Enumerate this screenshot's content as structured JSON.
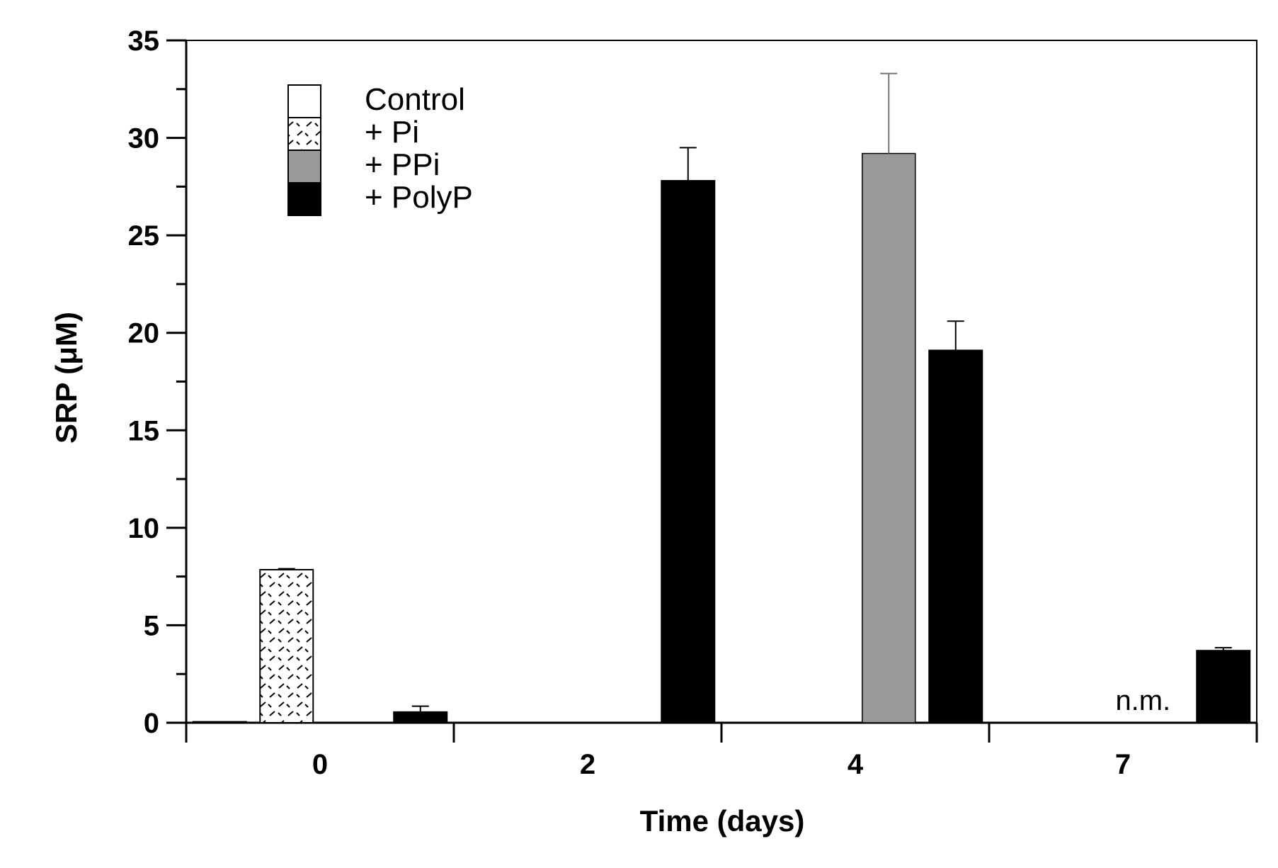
{
  "chart_data": {
    "type": "bar",
    "title": "",
    "xlabel": "Time (days)",
    "ylabel": "SRP (μM)",
    "ylim": [
      0,
      35
    ],
    "yticks": [
      0,
      5,
      10,
      15,
      20,
      25,
      30,
      35
    ],
    "ytick_labels": [
      "0",
      "5",
      "10",
      "15",
      "20",
      "25",
      "30",
      "35"
    ],
    "categories": [
      "0",
      "2",
      "4",
      "7"
    ],
    "grid": false,
    "legend_position": "top-left",
    "series": [
      {
        "name": "Control",
        "fill": "#ffffff",
        "pattern": "none",
        "values": [
          0.05,
          null,
          null,
          null
        ],
        "errors": [
          0,
          null,
          null,
          null
        ]
      },
      {
        "name": "+ Pi",
        "fill": "#ffffff",
        "pattern": "dashes",
        "values": [
          7.85,
          null,
          null,
          null
        ],
        "errors": [
          0.05,
          null,
          null,
          null
        ]
      },
      {
        "name": "+ PPi",
        "fill": "#999999",
        "pattern": "none",
        "values": [
          null,
          null,
          29.2,
          null
        ],
        "errors": [
          null,
          null,
          4.1,
          null
        ]
      },
      {
        "name": "+ PolyP",
        "fill": "#000000",
        "pattern": "none",
        "values": [
          0.55,
          27.8,
          19.1,
          3.7
        ],
        "errors": [
          0.3,
          1.7,
          1.5,
          0.15
        ]
      }
    ],
    "annotations": [
      {
        "category": "7",
        "text": "n.m."
      }
    ]
  }
}
